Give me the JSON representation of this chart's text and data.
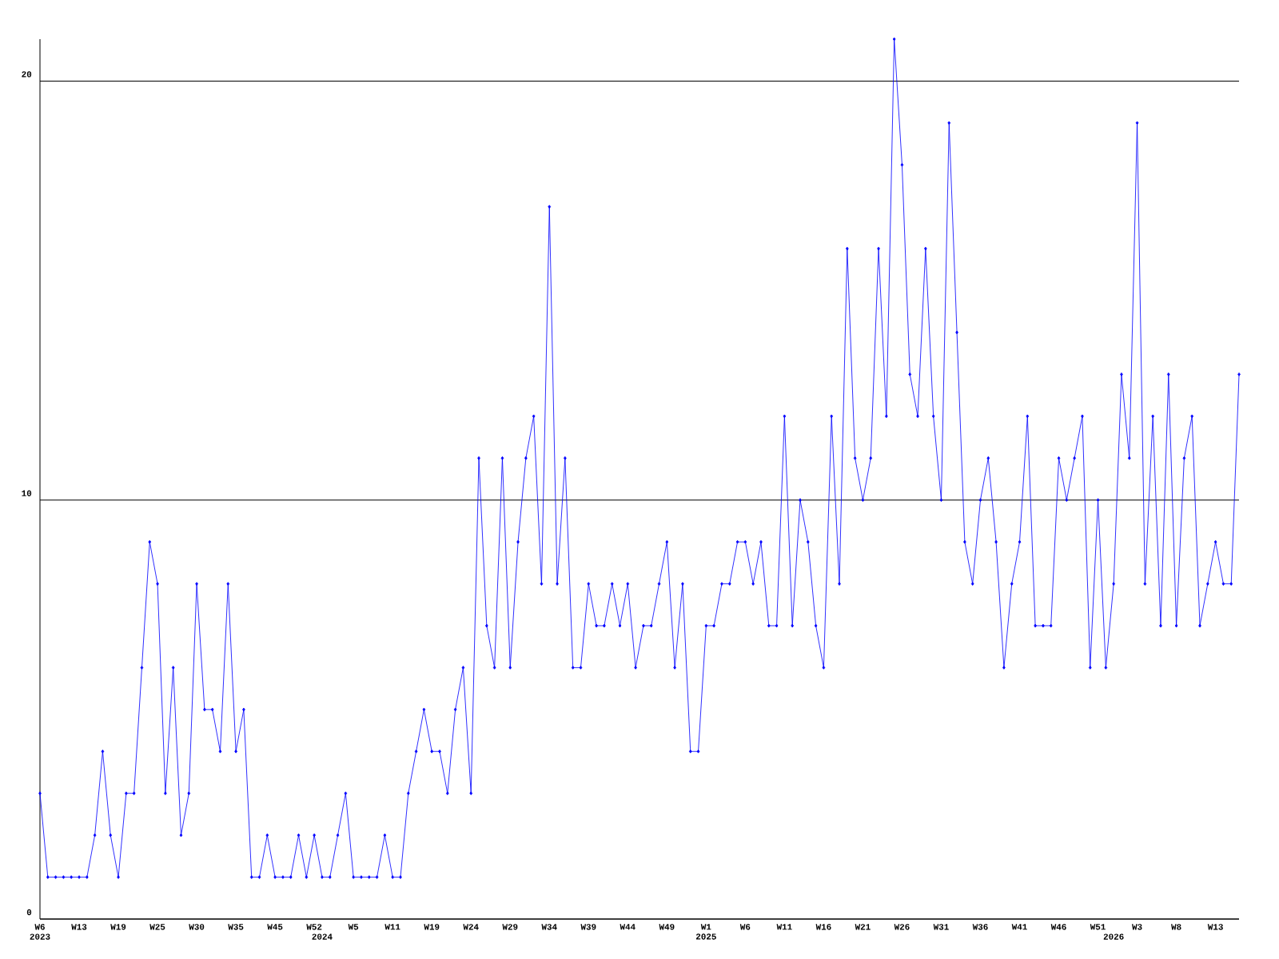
{
  "chart_data": {
    "type": "line",
    "categories": [
      "W6 2023",
      null,
      null,
      null,
      null,
      "W13",
      null,
      null,
      null,
      null,
      "W19",
      null,
      null,
      null,
      null,
      "W25",
      null,
      null,
      null,
      null,
      "W30",
      null,
      null,
      null,
      null,
      "W35",
      null,
      null,
      null,
      null,
      "W45",
      null,
      null,
      null,
      null,
      "W52",
      "2024",
      null,
      null,
      null,
      "W5",
      null,
      null,
      null,
      null,
      "W11",
      null,
      null,
      null,
      null,
      "W19",
      null,
      null,
      null,
      null,
      "W24",
      null,
      null,
      null,
      null,
      "W29",
      null,
      null,
      null,
      null,
      "W34",
      null,
      null,
      null,
      null,
      "W39",
      null,
      null,
      null,
      null,
      "W44",
      null,
      null,
      null,
      null,
      "W49",
      null,
      null,
      null,
      null,
      "W1 2025",
      null,
      null,
      null,
      null,
      "W6",
      null,
      null,
      null,
      null,
      "W11",
      null,
      null,
      null,
      null,
      "W16",
      null,
      null,
      null,
      null,
      "W21",
      null,
      null,
      null,
      null,
      "W26",
      null,
      null,
      null,
      null,
      "W31",
      null,
      null,
      null,
      null,
      "W36",
      null,
      null,
      null,
      null,
      "W41",
      null,
      null,
      null,
      null,
      "W46",
      null,
      null,
      null,
      null,
      "W51",
      null,
      "2026",
      null,
      null,
      "W3",
      null,
      null,
      null,
      null,
      "W8",
      null,
      null,
      null,
      null,
      "W13",
      null,
      null,
      null
    ],
    "values": [
      3,
      1,
      1,
      1,
      1,
      1,
      1,
      2,
      4,
      2,
      1,
      3,
      3,
      6,
      9,
      8,
      3,
      6,
      2,
      3,
      8,
      5,
      5,
      4,
      8,
      4,
      5,
      1,
      1,
      2,
      1,
      1,
      1,
      2,
      1,
      2,
      1,
      1,
      2,
      3,
      1,
      1,
      1,
      1,
      2,
      1,
      1,
      3,
      4,
      5,
      4,
      4,
      3,
      5,
      6,
      3,
      11,
      7,
      6,
      11,
      6,
      9,
      11,
      12,
      8,
      17,
      8,
      11,
      6,
      6,
      8,
      7,
      7,
      8,
      7,
      8,
      6,
      7,
      7,
      8,
      9,
      6,
      8,
      4,
      4,
      7,
      7,
      8,
      8,
      9,
      9,
      8,
      9,
      7,
      7,
      12,
      7,
      10,
      9,
      7,
      6,
      12,
      8,
      16,
      11,
      10,
      11,
      16,
      12,
      21,
      18,
      13,
      12,
      16,
      12,
      10,
      19,
      14,
      9,
      8,
      10,
      11,
      9,
      6,
      8,
      9,
      12,
      7,
      7,
      7,
      11,
      10,
      11,
      12,
      6,
      10,
      6,
      8,
      13,
      11,
      19,
      8,
      12,
      7,
      13,
      7,
      11,
      12,
      7,
      8,
      9,
      8,
      8,
      13
    ],
    "color": "#0000ff",
    "ylim": [
      0,
      21
    ],
    "yticks": [
      0,
      10,
      20
    ],
    "grid": "y",
    "marker": "diamond"
  }
}
